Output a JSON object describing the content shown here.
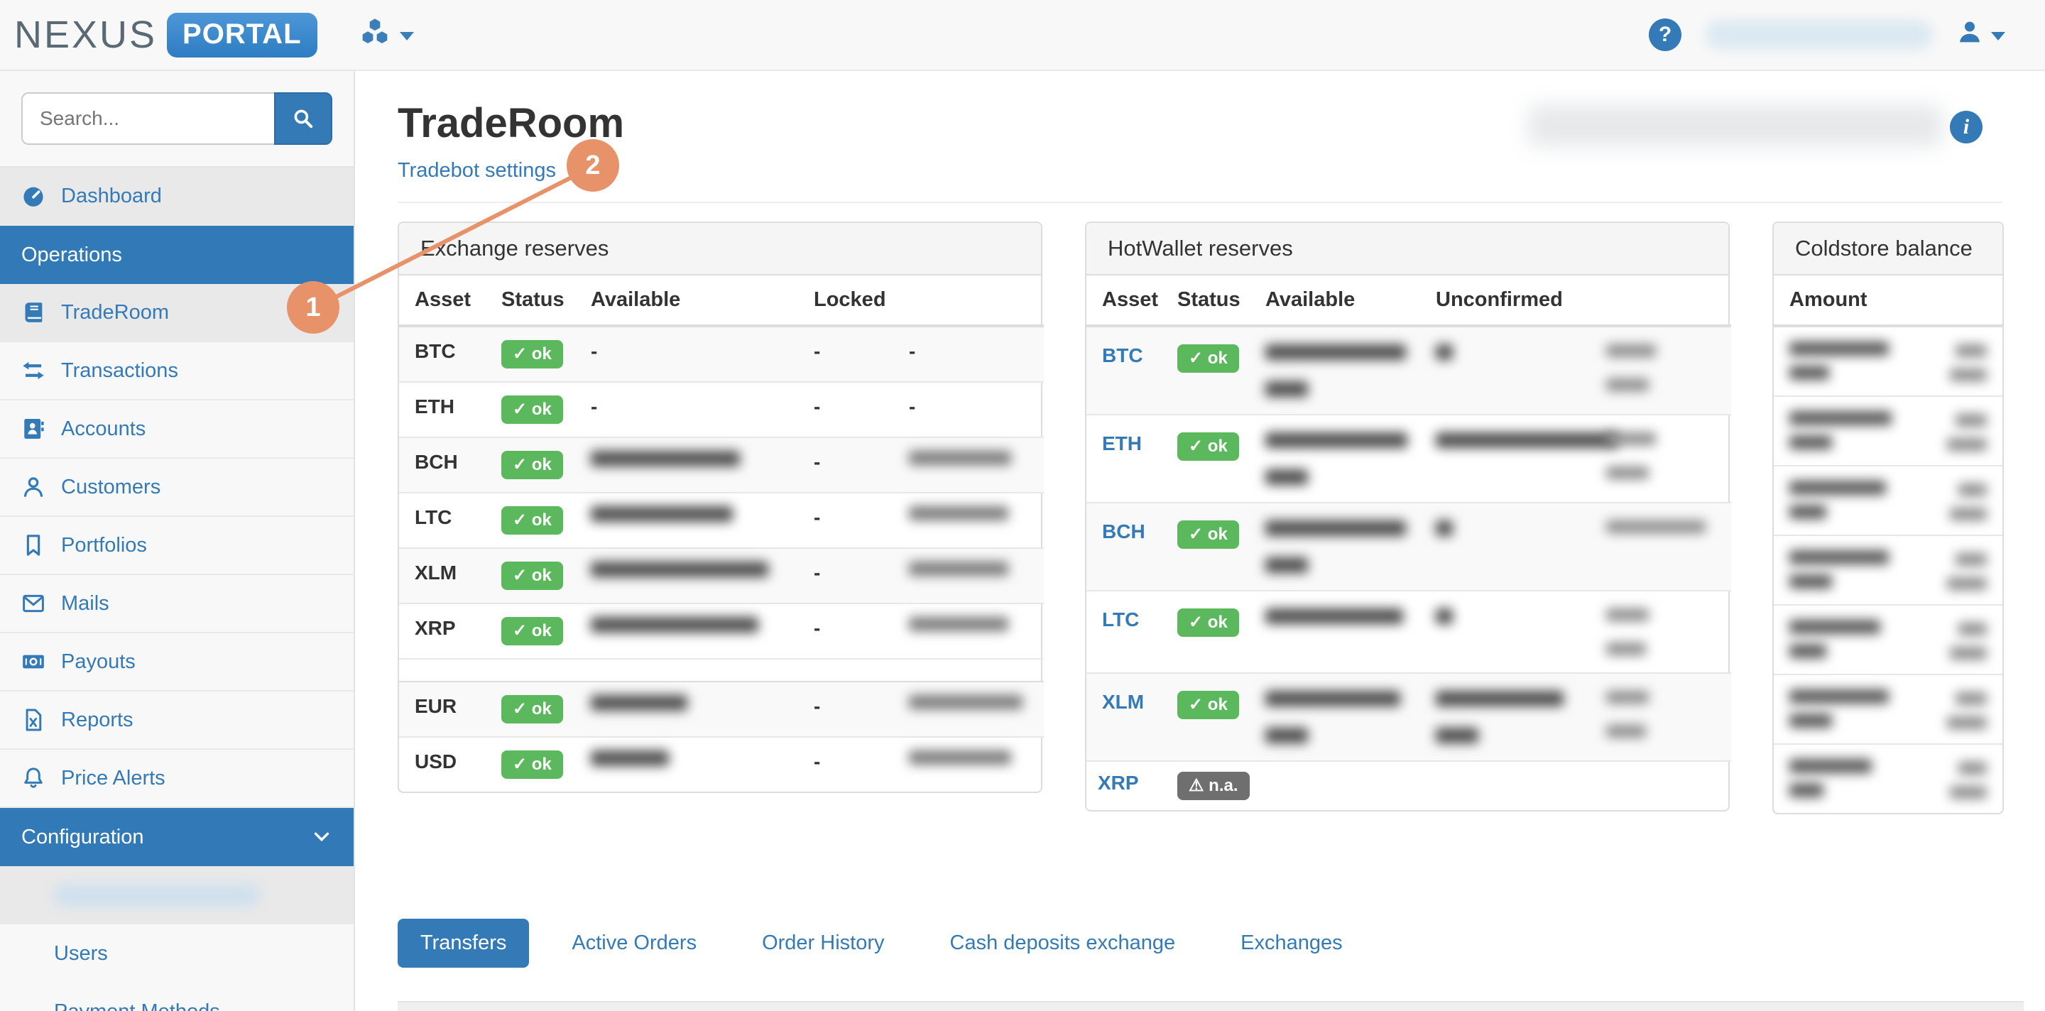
{
  "navbar": {
    "brand": "NEXUS",
    "brand_badge": "PORTAL"
  },
  "sidebar": {
    "search_placeholder": "Search...",
    "menu": [
      {
        "label": "Dashboard",
        "icon": "tachometer-icon",
        "kind": "item",
        "highlight": true
      },
      {
        "label": "Operations",
        "kind": "section"
      },
      {
        "label": "TradeRoom",
        "icon": "book-icon",
        "kind": "item",
        "highlight": true
      },
      {
        "label": "Transactions",
        "icon": "exchange-icon",
        "kind": "item"
      },
      {
        "label": "Accounts",
        "icon": "address-book-icon",
        "kind": "item"
      },
      {
        "label": "Customers",
        "icon": "user-icon",
        "kind": "item"
      },
      {
        "label": "Portfolios",
        "icon": "bookmark-icon",
        "kind": "item"
      },
      {
        "label": "Mails",
        "icon": "envelope-icon",
        "kind": "item"
      },
      {
        "label": "Payouts",
        "icon": "money-icon",
        "kind": "item"
      },
      {
        "label": "Reports",
        "icon": "file-excel-icon",
        "kind": "item"
      },
      {
        "label": "Price Alerts",
        "icon": "bell-icon",
        "kind": "item"
      },
      {
        "label": "Configuration",
        "kind": "section",
        "chevron": true
      },
      {
        "kind": "subitem",
        "redacted": true
      },
      {
        "label": "Users",
        "kind": "subitem"
      },
      {
        "label": "Payment Methods",
        "kind": "subitem"
      }
    ]
  },
  "page": {
    "title": "TradeRoom",
    "settings_link": "Tradebot settings",
    "environment_label_redacted": true
  },
  "annotations": {
    "marker1": "1",
    "marker2": "2"
  },
  "status_labels": {
    "ok": "ok",
    "na": "n.a.",
    "check_icon": "✓",
    "warning_icon": "⚠"
  },
  "exchange_reserves": {
    "title": "Exchange reserves",
    "columns": [
      "Asset",
      "Status",
      "Available",
      "Locked",
      ""
    ],
    "rows": [
      {
        "asset": "BTC",
        "status": "ok",
        "available": "-",
        "locked": "-",
        "value": "-"
      },
      {
        "asset": "ETH",
        "status": "ok",
        "available": "-",
        "locked": "-",
        "value": "-"
      },
      {
        "asset": "BCH",
        "status": "ok",
        "available_redacted": [
          105
        ],
        "locked": "-",
        "value_redacted": [
          72
        ]
      },
      {
        "asset": "LTC",
        "status": "ok",
        "available_redacted": [
          100
        ],
        "locked": "-",
        "value_redacted": [
          70
        ]
      },
      {
        "asset": "XLM",
        "status": "ok",
        "available_redacted": [
          125
        ],
        "locked": "-",
        "value_redacted": [
          70
        ]
      },
      {
        "asset": "XRP",
        "status": "ok",
        "available_redacted": [
          118
        ],
        "locked": "-",
        "value_redacted": [
          70
        ]
      },
      {
        "spacer": true
      },
      {
        "asset": "EUR",
        "status": "ok",
        "available_redacted": [
          68
        ],
        "locked": "-",
        "value_redacted": [
          80
        ]
      },
      {
        "asset": "USD",
        "status": "ok",
        "available_redacted": [
          55
        ],
        "locked": "-",
        "value_redacted": [
          72
        ]
      }
    ]
  },
  "hotwallet_reserves": {
    "title": "HotWallet reserves",
    "columns": [
      "Asset",
      "Status",
      "Available",
      "Unconfirmed",
      ""
    ],
    "rows": [
      {
        "asset": "BTC",
        "status": "ok",
        "available_redacted": [
          99,
          30
        ],
        "unconfirmed_redacted": [
          12
        ],
        "value_redacted": [
          35,
          30
        ]
      },
      {
        "asset": "ETH",
        "status": "ok",
        "available_redacted": [
          100,
          30
        ],
        "unconfirmed_redacted": [
          128
        ],
        "value_redacted": [
          35,
          30
        ]
      },
      {
        "asset": "BCH",
        "status": "ok",
        "available_redacted": [
          99,
          30
        ],
        "unconfirmed_redacted": [
          12
        ],
        "value_redacted": [
          70
        ]
      },
      {
        "asset": "LTC",
        "status": "ok",
        "available_redacted": [
          97
        ],
        "unconfirmed_redacted": [
          12
        ],
        "value_redacted": [
          30,
          28
        ]
      },
      {
        "asset": "XLM",
        "status": "ok",
        "available_redacted": [
          95,
          30
        ],
        "unconfirmed_redacted": [
          90,
          30
        ],
        "value_redacted": [
          30,
          28
        ]
      },
      {
        "asset": "XRP",
        "status": "na"
      }
    ]
  },
  "coldstore_balance": {
    "title": "Coldstore balance",
    "columns": [
      "Amount"
    ],
    "rows": [
      {
        "amount_redacted": [
          70,
          28
        ],
        "value_redacted": [
          22,
          26
        ]
      },
      {
        "amount_redacted": [
          72,
          30
        ],
        "value_redacted": [
          22,
          28
        ]
      },
      {
        "amount_redacted": [
          68,
          26
        ],
        "value_redacted": [
          20,
          26
        ]
      },
      {
        "amount_redacted": [
          70,
          30
        ],
        "value_redacted": [
          22,
          28
        ]
      },
      {
        "amount_redacted": [
          64,
          26
        ],
        "value_redacted": [
          20,
          26
        ]
      },
      {
        "amount_redacted": [
          70,
          30
        ],
        "value_redacted": [
          22,
          28
        ]
      },
      {
        "amount_redacted": [
          58,
          24
        ],
        "value_redacted": [
          20,
          26
        ]
      }
    ]
  },
  "tabs": [
    {
      "label": "Transfers",
      "active": true
    },
    {
      "label": "Active Orders"
    },
    {
      "label": "Order History"
    },
    {
      "label": "Cash deposits exchange"
    },
    {
      "label": "Exchanges"
    }
  ],
  "colors": {
    "accent": "#337ab7",
    "ok_badge": "#5cb85c",
    "na_badge": "#6f6f6f",
    "annotation": "#e8926a"
  }
}
